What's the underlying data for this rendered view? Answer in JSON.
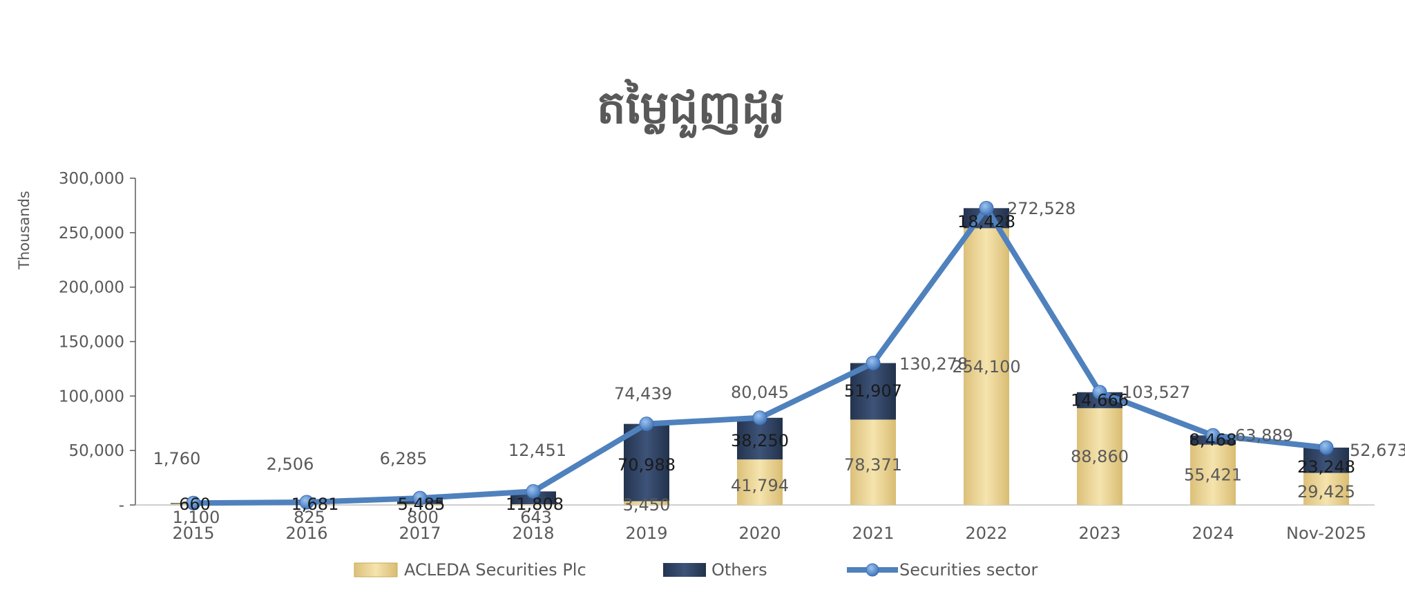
{
  "chart_data": {
    "type": "bar",
    "subtype": "stacked-bar-with-line",
    "title": "តម្លៃជួញដូរ",
    "ylabel": "Thousands",
    "ylim": [
      0,
      300000
    ],
    "yticks": [
      "-",
      "50,000",
      "100,000",
      "150,000",
      "200,000",
      "250,000",
      "300,000"
    ],
    "categories": [
      "2015",
      "2016",
      "2017",
      "2018",
      "2019",
      "2020",
      "2021",
      "2022",
      "2023",
      "2024",
      "Nov-2025"
    ],
    "series": [
      {
        "name": "ACLEDA Securities Plc",
        "kind": "bar",
        "color": "#E8CF8A",
        "values": [
          1100,
          825,
          800,
          643,
          3450,
          41794,
          78371,
          254100,
          88860,
          55421,
          29425
        ],
        "labels": [
          "1,100",
          "825",
          "800",
          "643",
          "3,450",
          "41,794",
          "78,371",
          "254,100",
          "88,860",
          "55,421",
          "29,425"
        ]
      },
      {
        "name": "Others",
        "kind": "bar",
        "color": "#2B3D5C",
        "values": [
          660,
          1681,
          5485,
          11808,
          70988,
          38250,
          51907,
          18428,
          14666,
          8468,
          23248
        ],
        "labels": [
          "660",
          "1,681",
          "5,485",
          "11,808",
          "70,988",
          "38,250",
          "51,907",
          "18,428",
          "14,666",
          "8,468",
          "23,248"
        ]
      },
      {
        "name": "Securities sector",
        "kind": "line",
        "color": "#4F81BD",
        "values": [
          1760,
          2506,
          6285,
          12451,
          74439,
          80045,
          130278,
          272528,
          103527,
          63889,
          52673
        ],
        "labels": [
          "1,760",
          "2,506",
          "6,285",
          "12,451",
          "74,439",
          "80,045",
          "130,278",
          "272,528",
          "103,527",
          "63,889",
          "52,673"
        ]
      }
    ],
    "legend_position": "bottom",
    "grid": false
  }
}
